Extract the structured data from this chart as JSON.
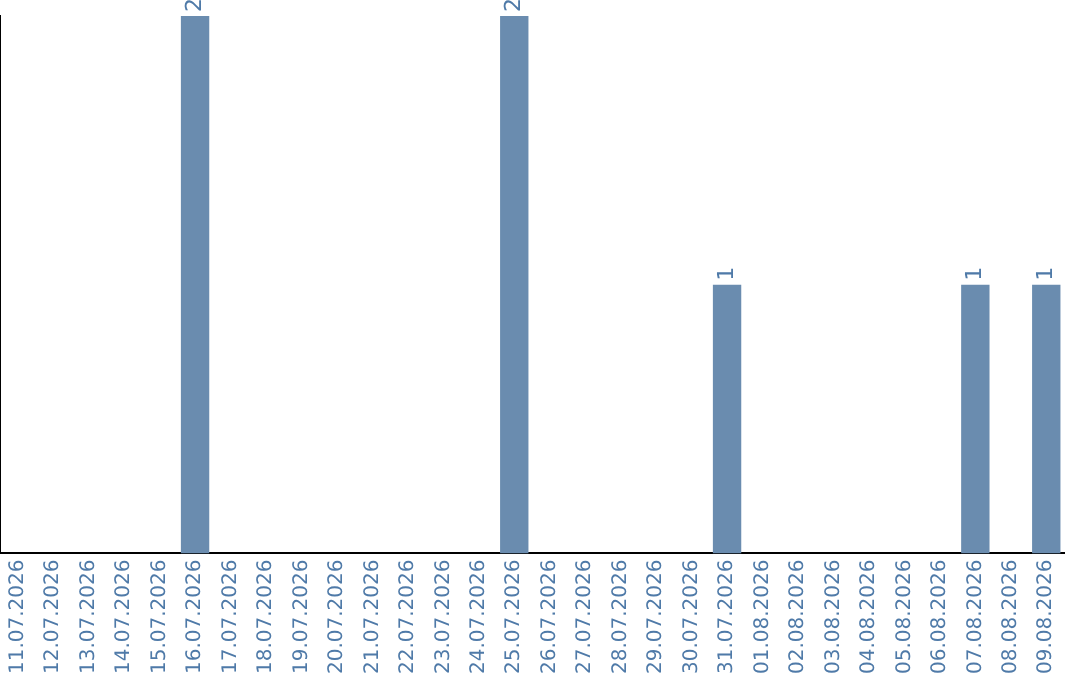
{
  "chart_data": {
    "type": "bar",
    "categories": [
      "11.07.2026",
      "12.07.2026",
      "13.07.2026",
      "14.07.2026",
      "15.07.2026",
      "16.07.2026",
      "17.07.2026",
      "18.07.2026",
      "19.07.2026",
      "20.07.2026",
      "21.07.2026",
      "22.07.2026",
      "23.07.2026",
      "24.07.2026",
      "25.07.2026",
      "26.07.2026",
      "27.07.2026",
      "28.07.2026",
      "29.07.2026",
      "30.07.2026",
      "31.07.2026",
      "01.08.2026",
      "02.08.2026",
      "03.08.2026",
      "04.08.2026",
      "05.08.2026",
      "06.08.2026",
      "07.08.2026",
      "08.08.2026",
      "09.08.2026"
    ],
    "values": [
      0,
      0,
      0,
      0,
      0,
      2,
      0,
      0,
      0,
      0,
      0,
      0,
      0,
      0,
      2,
      0,
      0,
      0,
      0,
      0,
      1,
      0,
      0,
      0,
      0,
      0,
      0,
      1,
      0,
      1
    ],
    "value_labels": [
      null,
      null,
      null,
      null,
      null,
      "2",
      null,
      null,
      null,
      null,
      null,
      null,
      null,
      null,
      "2",
      null,
      null,
      null,
      null,
      null,
      "1",
      null,
      null,
      null,
      null,
      null,
      null,
      "1",
      null,
      "1"
    ],
    "color": "#6a8caf",
    "grid": false,
    "legend": false,
    "tick_labels": "x"
  }
}
